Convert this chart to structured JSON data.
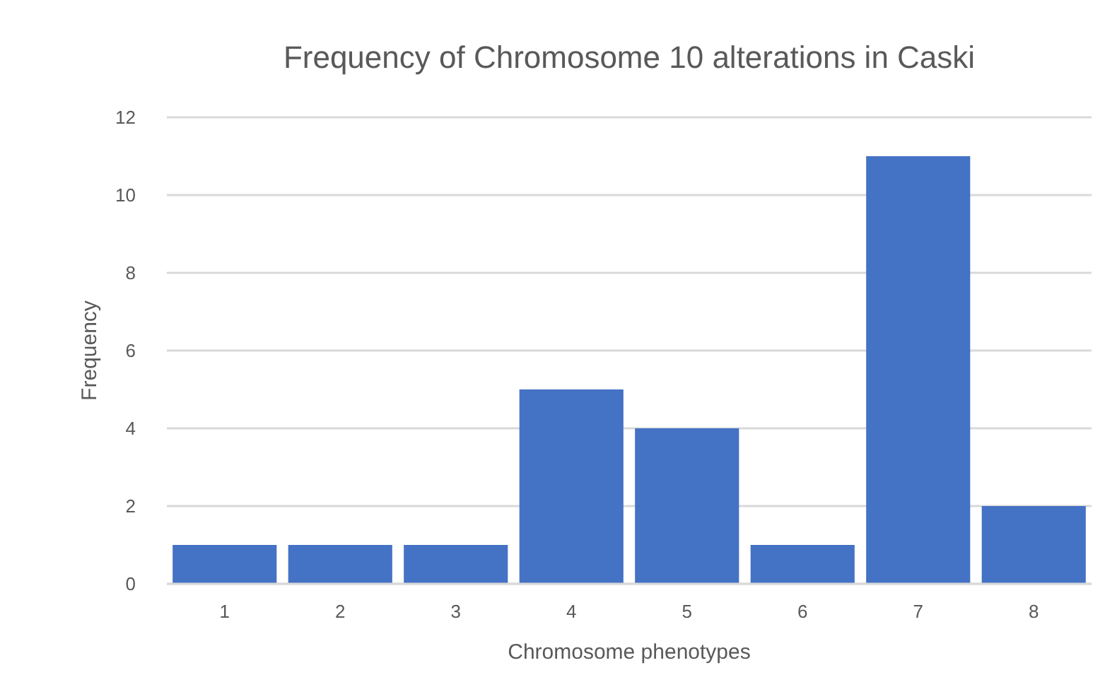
{
  "chart_data": {
    "type": "bar",
    "title": "Frequency of Chromosome 10 alterations in Caski",
    "xlabel": "Chromosome phenotypes",
    "ylabel": "Frequency",
    "categories": [
      "1",
      "2",
      "3",
      "4",
      "5",
      "6",
      "7",
      "8"
    ],
    "values": [
      1,
      1,
      1,
      5,
      4,
      1,
      11,
      2
    ],
    "color": "#4472c4",
    "ylim": [
      0,
      12
    ],
    "yticks": [
      0,
      2,
      4,
      6,
      8,
      10,
      12
    ],
    "grid": "y"
  }
}
